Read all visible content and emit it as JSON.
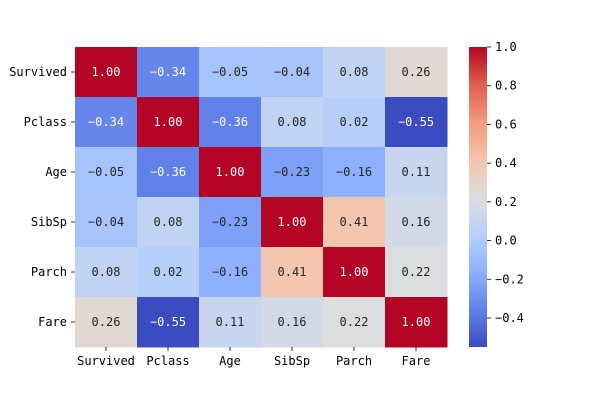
{
  "chart_data": {
    "type": "heatmap",
    "title": "",
    "xlabel": "",
    "ylabel": "",
    "x_categories": [
      "Survived",
      "Pclass",
      "Age",
      "SibSp",
      "Parch",
      "Fare"
    ],
    "y_categories": [
      "Survived",
      "Pclass",
      "Age",
      "SibSp",
      "Parch",
      "Fare"
    ],
    "values": [
      [
        1.0,
        -0.34,
        -0.05,
        -0.04,
        0.08,
        0.26
      ],
      [
        -0.34,
        1.0,
        -0.36,
        0.08,
        0.02,
        -0.55
      ],
      [
        -0.05,
        -0.36,
        1.0,
        -0.23,
        -0.16,
        0.11
      ],
      [
        -0.04,
        0.08,
        -0.23,
        1.0,
        0.41,
        0.16
      ],
      [
        0.08,
        0.02,
        -0.16,
        0.41,
        1.0,
        0.22
      ],
      [
        0.26,
        -0.55,
        0.11,
        0.16,
        0.22,
        1.0
      ]
    ],
    "annotation_format": "2 decimals",
    "colormap": "coolwarm",
    "colorbar": {
      "range": [
        -0.55,
        1.0
      ],
      "ticks": [
        -0.4,
        -0.2,
        0.0,
        0.2,
        0.4,
        0.6,
        0.8,
        1.0
      ],
      "placement": "right"
    },
    "grid": false,
    "legend": "colorbar-right"
  }
}
